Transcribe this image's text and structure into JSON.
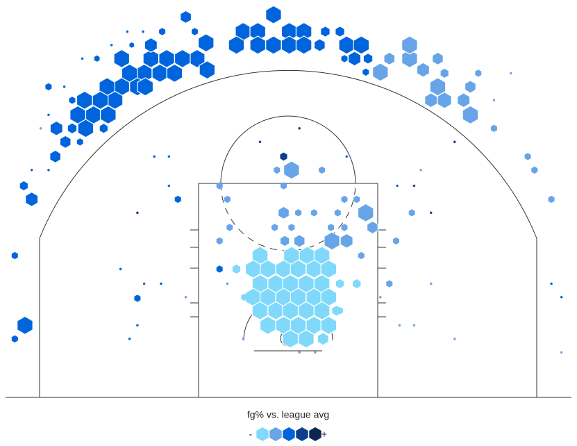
{
  "chart_data": {
    "type": "hexbin",
    "legend_title": "fg% vs. league avg",
    "legend_low": "-",
    "legend_high": "+",
    "colors": [
      "#80d9fb",
      "#68a4e8",
      "#0065dc",
      "#0d3f8c",
      "#0b2650"
    ],
    "hexes": [
      {
        "x": -7.3,
        "y": 31.5,
        "size": 1,
        "level": 3
      },
      {
        "x": -8.1,
        "y": 30.1,
        "size": 1,
        "level": 3
      },
      {
        "x": -7.2,
        "y": 29.1,
        "size": 1,
        "level": 3
      },
      {
        "x": -9.4,
        "y": 30.1,
        "size": 1,
        "level": 3
      },
      {
        "x": -10.8,
        "y": 30.1,
        "size": 1,
        "level": 3
      },
      {
        "x": -12.2,
        "y": 30.1,
        "size": 1,
        "level": 3
      },
      {
        "x": -11.4,
        "y": 28.8,
        "size": 1,
        "level": 3
      },
      {
        "x": -12.8,
        "y": 28.8,
        "size": 1,
        "level": 3
      },
      {
        "x": -14.1,
        "y": 28.8,
        "size": 1,
        "level": 3
      },
      {
        "x": -13.4,
        "y": 27.6,
        "size": 1,
        "level": 3
      },
      {
        "x": -14.8,
        "y": 27.6,
        "size": 1,
        "level": 3
      },
      {
        "x": -16.1,
        "y": 27.6,
        "size": 1,
        "level": 3
      },
      {
        "x": -15.4,
        "y": 26.4,
        "size": 1,
        "level": 3
      },
      {
        "x": -16.7,
        "y": 26.4,
        "size": 1,
        "level": 3
      },
      {
        "x": -18.1,
        "y": 26.4,
        "size": 1,
        "level": 3
      },
      {
        "x": -17.3,
        "y": 25.1,
        "size": 1,
        "level": 3
      },
      {
        "x": -16.0,
        "y": 25.1,
        "size": 1,
        "level": 3
      },
      {
        "x": -18.7,
        "y": 25.1,
        "size": 1,
        "level": 3
      },
      {
        "x": -18.0,
        "y": 23.9,
        "size": 1,
        "level": 3
      },
      {
        "x": -12.7,
        "y": 27.6,
        "size": 1,
        "level": 3
      },
      {
        "x": -10.1,
        "y": 28.8,
        "size": 1,
        "level": 3
      },
      {
        "x": -14.8,
        "y": 30.1,
        "size": 1,
        "level": 3
      },
      {
        "x": -12.2,
        "y": 31.3,
        "size": 0.8,
        "level": 3
      },
      {
        "x": -4.0,
        "y": 32.5,
        "size": 1,
        "level": 3
      },
      {
        "x": -2.7,
        "y": 32.5,
        "size": 1,
        "level": 3
      },
      {
        "x": -1.3,
        "y": 34.0,
        "size": 1,
        "level": 3
      },
      {
        "x": 0.1,
        "y": 32.5,
        "size": 1,
        "level": 3
      },
      {
        "x": 1.4,
        "y": 32.5,
        "size": 1,
        "level": 3
      },
      {
        "x": -2.7,
        "y": 31.3,
        "size": 1,
        "level": 3
      },
      {
        "x": -1.3,
        "y": 31.3,
        "size": 1,
        "level": 3
      },
      {
        "x": 0.1,
        "y": 31.3,
        "size": 1,
        "level": 3
      },
      {
        "x": 1.4,
        "y": 31.3,
        "size": 1,
        "level": 3
      },
      {
        "x": -4.6,
        "y": 31.3,
        "size": 1,
        "level": 3
      },
      {
        "x": 2.8,
        "y": 31.3,
        "size": 0.7,
        "level": 3
      },
      {
        "x": 5.2,
        "y": 31.3,
        "size": 1,
        "level": 3
      },
      {
        "x": 6.5,
        "y": 31.3,
        "size": 1,
        "level": 3
      },
      {
        "x": 5.9,
        "y": 30.1,
        "size": 0.8,
        "level": 3
      },
      {
        "x": -9.1,
        "y": 33.8,
        "size": 0.7,
        "level": 3
      },
      {
        "x": -11.2,
        "y": 32.5,
        "size": 0.4,
        "level": 3
      },
      {
        "x": -8.3,
        "y": 32.5,
        "size": 0.4,
        "level": 3
      },
      {
        "x": 3.3,
        "y": 32.5,
        "size": 0.6,
        "level": 3
      },
      {
        "x": 4.6,
        "y": 32.5,
        "size": 0.6,
        "level": 3
      },
      {
        "x": 7.1,
        "y": 30.1,
        "size": 0.6,
        "level": 3
      },
      {
        "x": 5.0,
        "y": 30.1,
        "size": 0.4,
        "level": 3
      },
      {
        "x": -16.4,
        "y": 23.9,
        "size": 0.5,
        "level": 3
      },
      {
        "x": -20.6,
        "y": 23.9,
        "size": 0.8,
        "level": 3
      },
      {
        "x": -19.2,
        "y": 23.9,
        "size": 0.6,
        "level": 3
      },
      {
        "x": -19.8,
        "y": 22.7,
        "size": 0.7,
        "level": 3
      },
      {
        "x": -20.7,
        "y": 21.4,
        "size": 0.7,
        "level": 3
      },
      {
        "x": -18.5,
        "y": 22.7,
        "size": 0.4,
        "level": 3
      },
      {
        "x": -21.3,
        "y": 27.6,
        "size": 0.4,
        "level": 3
      },
      {
        "x": -22.8,
        "y": 17.6,
        "size": 0.8,
        "level": 3
      },
      {
        "x": -23.5,
        "y": 18.8,
        "size": 0.5,
        "level": 3
      },
      {
        "x": -23.4,
        "y": 6.4,
        "size": 1,
        "level": 3
      },
      {
        "x": -24.3,
        "y": 5.2,
        "size": 0.4,
        "level": 3
      },
      {
        "x": -24.3,
        "y": 12.6,
        "size": 0.4,
        "level": 3
      },
      {
        "x": -9.8,
        "y": 17.6,
        "size": 0.4,
        "level": 3
      },
      {
        "x": -13.4,
        "y": 8.8,
        "size": 0.4,
        "level": 3
      },
      {
        "x": -6.1,
        "y": 11.4,
        "size": 0.4,
        "level": 3
      },
      {
        "x": 6.9,
        "y": 28.9,
        "size": 0.4,
        "level": 3
      },
      {
        "x": -17.0,
        "y": 30.1,
        "size": 0.35,
        "level": 3
      },
      {
        "x": -19.2,
        "y": 26.4,
        "size": 0.4,
        "level": 3
      },
      {
        "x": -13.9,
        "y": 31.3,
        "size": 0.3,
        "level": 3
      },
      {
        "x": 10.8,
        "y": 30.1,
        "size": 1,
        "level": 2
      },
      {
        "x": 10.8,
        "y": 31.3,
        "size": 1,
        "level": 2
      },
      {
        "x": 12.0,
        "y": 29.1,
        "size": 0.8,
        "level": 2
      },
      {
        "x": 13.3,
        "y": 30.1,
        "size": 0.7,
        "level": 2
      },
      {
        "x": 13.3,
        "y": 27.6,
        "size": 1,
        "level": 2
      },
      {
        "x": 13.9,
        "y": 26.4,
        "size": 0.9,
        "level": 2
      },
      {
        "x": 12.7,
        "y": 26.4,
        "size": 0.8,
        "level": 2
      },
      {
        "x": 15.6,
        "y": 26.4,
        "size": 0.8,
        "level": 2
      },
      {
        "x": 16.2,
        "y": 27.6,
        "size": 0.7,
        "level": 2
      },
      {
        "x": 16.2,
        "y": 25.1,
        "size": 1,
        "level": 2
      },
      {
        "x": 8.2,
        "y": 28.9,
        "size": 1,
        "level": 2
      },
      {
        "x": 9.0,
        "y": 30.1,
        "size": 0.7,
        "level": 2
      },
      {
        "x": 13.9,
        "y": 28.8,
        "size": 0.5,
        "level": 2
      },
      {
        "x": 16.9,
        "y": 28.8,
        "size": 0.4,
        "level": 2
      },
      {
        "x": 18.3,
        "y": 23.9,
        "size": 0.4,
        "level": 2
      },
      {
        "x": 21.3,
        "y": 21.4,
        "size": 0.4,
        "level": 2
      },
      {
        "x": 21.9,
        "y": 20.2,
        "size": 0.4,
        "level": 2
      },
      {
        "x": 23.4,
        "y": 17.6,
        "size": 0.4,
        "level": 2
      },
      {
        "x": 0.3,
        "y": 20.2,
        "size": 1,
        "level": 2
      },
      {
        "x": -1.0,
        "y": 20.2,
        "size": 0.4,
        "level": 2
      },
      {
        "x": -0.4,
        "y": 18.8,
        "size": 0.4,
        "level": 2
      },
      {
        "x": 3.0,
        "y": 20.2,
        "size": 0.4,
        "level": 2
      },
      {
        "x": -6.1,
        "y": 18.8,
        "size": 0.4,
        "level": 2
      },
      {
        "x": -5.4,
        "y": 17.6,
        "size": 0.4,
        "level": 2
      },
      {
        "x": -0.4,
        "y": 16.4,
        "size": 0.7,
        "level": 2
      },
      {
        "x": 0.9,
        "y": 16.4,
        "size": 0.4,
        "level": 2
      },
      {
        "x": 2.3,
        "y": 16.4,
        "size": 0.4,
        "level": 2
      },
      {
        "x": 4.4,
        "y": 16.4,
        "size": 0.4,
        "level": 2
      },
      {
        "x": 6.9,
        "y": 16.4,
        "size": 1,
        "level": 2
      },
      {
        "x": 6.1,
        "y": 17.6,
        "size": 0.4,
        "level": 2
      },
      {
        "x": 5.0,
        "y": 17.6,
        "size": 0.4,
        "level": 2
      },
      {
        "x": 7.5,
        "y": 15.1,
        "size": 0.7,
        "level": 2
      },
      {
        "x": 5.0,
        "y": 15.1,
        "size": 0.4,
        "level": 2
      },
      {
        "x": 3.8,
        "y": 15.1,
        "size": 0.4,
        "level": 2
      },
      {
        "x": 0.3,
        "y": 15.1,
        "size": 0.4,
        "level": 2
      },
      {
        "x": -1.2,
        "y": 15.1,
        "size": 0.4,
        "level": 2
      },
      {
        "x": -5.2,
        "y": 15.1,
        "size": 0.4,
        "level": 2
      },
      {
        "x": -6.1,
        "y": 13.9,
        "size": 0.4,
        "level": 2
      },
      {
        "x": -0.3,
        "y": 13.9,
        "size": 0.6,
        "level": 2
      },
      {
        "x": 1.0,
        "y": 13.9,
        "size": 0.7,
        "level": 2
      },
      {
        "x": 3.9,
        "y": 13.9,
        "size": 1,
        "level": 2
      },
      {
        "x": 5.2,
        "y": 13.9,
        "size": 0.8,
        "level": 2
      },
      {
        "x": 9.6,
        "y": 13.9,
        "size": 0.4,
        "level": 2
      },
      {
        "x": 11.0,
        "y": 16.4,
        "size": 0.4,
        "level": 2
      },
      {
        "x": 9.0,
        "y": 10.1,
        "size": 0.4,
        "level": 2
      },
      {
        "x": -3.3,
        "y": 11.4,
        "size": 0.4,
        "level": 2
      },
      {
        "x": 6.5,
        "y": 12.6,
        "size": 0.4,
        "level": 2
      },
      {
        "x": -2.5,
        "y": 12.6,
        "size": 1,
        "level": 1
      },
      {
        "x": 0.3,
        "y": 12.6,
        "size": 1,
        "level": 1
      },
      {
        "x": 1.7,
        "y": 12.6,
        "size": 1,
        "level": 1
      },
      {
        "x": 3.0,
        "y": 12.6,
        "size": 1,
        "level": 1
      },
      {
        "x": -3.1,
        "y": 11.4,
        "size": 1,
        "level": 1
      },
      {
        "x": -1.8,
        "y": 11.4,
        "size": 1,
        "level": 1
      },
      {
        "x": -0.4,
        "y": 11.4,
        "size": 1,
        "level": 1
      },
      {
        "x": 0.9,
        "y": 11.4,
        "size": 1,
        "level": 1
      },
      {
        "x": 2.3,
        "y": 11.4,
        "size": 1,
        "level": 1
      },
      {
        "x": 3.6,
        "y": 11.4,
        "size": 1,
        "level": 1
      },
      {
        "x": -2.5,
        "y": 10.1,
        "size": 1,
        "level": 1
      },
      {
        "x": -1.1,
        "y": 10.1,
        "size": 1,
        "level": 1
      },
      {
        "x": 0.2,
        "y": 10.1,
        "size": 1,
        "level": 1
      },
      {
        "x": 1.6,
        "y": 10.1,
        "size": 1,
        "level": 1
      },
      {
        "x": 3.0,
        "y": 10.1,
        "size": 1,
        "level": 1
      },
      {
        "x": -3.1,
        "y": 8.9,
        "size": 1,
        "level": 1
      },
      {
        "x": -1.8,
        "y": 8.9,
        "size": 1,
        "level": 1
      },
      {
        "x": -0.4,
        "y": 8.9,
        "size": 1,
        "level": 1
      },
      {
        "x": 0.9,
        "y": 8.9,
        "size": 1,
        "level": 1
      },
      {
        "x": 2.3,
        "y": 8.9,
        "size": 1,
        "level": 1
      },
      {
        "x": 3.6,
        "y": 8.9,
        "size": 1,
        "level": 1
      },
      {
        "x": -2.5,
        "y": 7.7,
        "size": 1,
        "level": 1
      },
      {
        "x": -1.1,
        "y": 7.7,
        "size": 1,
        "level": 1
      },
      {
        "x": 0.2,
        "y": 7.7,
        "size": 1,
        "level": 1
      },
      {
        "x": 1.6,
        "y": 7.7,
        "size": 1,
        "level": 1
      },
      {
        "x": 3.0,
        "y": 7.7,
        "size": 1,
        "level": 1
      },
      {
        "x": 4.3,
        "y": 7.7,
        "size": 0.6,
        "level": 1
      },
      {
        "x": -1.8,
        "y": 6.4,
        "size": 1,
        "level": 1
      },
      {
        "x": -0.4,
        "y": 6.4,
        "size": 1,
        "level": 1
      },
      {
        "x": 0.9,
        "y": 6.4,
        "size": 1,
        "level": 1
      },
      {
        "x": 2.3,
        "y": 6.4,
        "size": 1,
        "level": 1
      },
      {
        "x": 3.6,
        "y": 6.4,
        "size": 1,
        "level": 1
      },
      {
        "x": 0.2,
        "y": 5.2,
        "size": 1,
        "level": 1
      },
      {
        "x": 1.6,
        "y": 5.2,
        "size": 1,
        "level": 1
      },
      {
        "x": 3.1,
        "y": 5.2,
        "size": 0.7,
        "level": 1
      },
      {
        "x": -4.6,
        "y": 11.4,
        "size": 0.5,
        "level": 1
      },
      {
        "x": 6.1,
        "y": 10.1,
        "size": 0.5,
        "level": 1
      },
      {
        "x": 4.6,
        "y": 10.1,
        "size": 0.5,
        "level": 1
      },
      {
        "x": -3.9,
        "y": 8.9,
        "size": 0.4,
        "level": 1
      },
      {
        "x": 4.6,
        "y": 7.7,
        "size": 0.4,
        "level": 1
      },
      {
        "x": -0.4,
        "y": 21.4,
        "size": 0.45,
        "level": 4
      },
      {
        "x": -14.3,
        "y": 32.5,
        "size": 0.15,
        "level": 3
      },
      {
        "x": -12.9,
        "y": 32.5,
        "size": 0.15,
        "level": 3
      },
      {
        "x": -15.7,
        "y": 31.3,
        "size": 0.15,
        "level": 3
      },
      {
        "x": -18.3,
        "y": 30.1,
        "size": 0.15,
        "level": 3
      },
      {
        "x": -19.9,
        "y": 27.6,
        "size": 0.15,
        "level": 3
      },
      {
        "x": -21.3,
        "y": 25.1,
        "size": 0.15,
        "level": 3
      },
      {
        "x": -22.0,
        "y": 23.9,
        "size": 0.15,
        "level": 2
      },
      {
        "x": -21.3,
        "y": 20.2,
        "size": 0.15,
        "level": 3
      },
      {
        "x": -22.8,
        "y": 20.2,
        "size": 0.15,
        "level": 3
      },
      {
        "x": -11.9,
        "y": 21.4,
        "size": 0.15,
        "level": 3
      },
      {
        "x": -10.6,
        "y": 21.4,
        "size": 0.15,
        "level": 3
      },
      {
        "x": -13.4,
        "y": 16.4,
        "size": 0.15,
        "level": 4
      },
      {
        "x": -14.9,
        "y": 11.4,
        "size": 0.15,
        "level": 3
      },
      {
        "x": -14.1,
        "y": 5.2,
        "size": 0.15,
        "level": 3
      },
      {
        "x": -13.4,
        "y": 6.4,
        "size": 0.15,
        "level": 3
      },
      {
        "x": -12.8,
        "y": 10.1,
        "size": 0.15,
        "level": 3
      },
      {
        "x": -11.3,
        "y": 10.1,
        "size": 0.15,
        "level": 3
      },
      {
        "x": -9.1,
        "y": 8.9,
        "size": 0.15,
        "level": 2
      },
      {
        "x": 11.2,
        "y": 6.4,
        "size": 0.15,
        "level": 2
      },
      {
        "x": 9.9,
        "y": 6.4,
        "size": 0.15,
        "level": 2
      },
      {
        "x": 12.7,
        "y": 10.1,
        "size": 0.15,
        "level": 2
      },
      {
        "x": 14.8,
        "y": 5.2,
        "size": 0.15,
        "level": 2
      },
      {
        "x": 24.3,
        "y": 4.0,
        "size": 0.15,
        "level": 2
      },
      {
        "x": 23.4,
        "y": 10.1,
        "size": 0.15,
        "level": 3
      },
      {
        "x": 24.3,
        "y": 8.9,
        "size": 0.15,
        "level": 3
      },
      {
        "x": 19.8,
        "y": 28.8,
        "size": 0.15,
        "level": 2
      },
      {
        "x": 18.3,
        "y": 26.4,
        "size": 0.15,
        "level": 2
      },
      {
        "x": 14.8,
        "y": 22.7,
        "size": 0.15,
        "level": 4
      },
      {
        "x": 12.7,
        "y": 16.4,
        "size": 0.15,
        "level": 4
      },
      {
        "x": 1.0,
        "y": 23.9,
        "size": 0.15,
        "level": 4
      },
      {
        "x": -2.5,
        "y": 22.7,
        "size": 0.15,
        "level": 4
      },
      {
        "x": 11.2,
        "y": 18.8,
        "size": 0.15,
        "level": 4
      },
      {
        "x": 9.7,
        "y": 18.8,
        "size": 0.15,
        "level": 3
      },
      {
        "x": 5.2,
        "y": 21.4,
        "size": 0.15,
        "level": 3
      },
      {
        "x": 11.8,
        "y": 20.2,
        "size": 0.15,
        "level": 2
      },
      {
        "x": -10.6,
        "y": 18.8,
        "size": 0.15,
        "level": 3
      },
      {
        "x": -4.0,
        "y": 5.2,
        "size": 0.15,
        "level": 2
      },
      {
        "x": 1.0,
        "y": 4.0,
        "size": 0.15,
        "level": 2
      },
      {
        "x": 2.4,
        "y": 4.0,
        "size": 0.15,
        "level": 2
      },
      {
        "x": -5.4,
        "y": 10.1,
        "size": 0.15,
        "level": 2
      },
      {
        "x": 8.2,
        "y": 8.9,
        "size": 0.15,
        "level": 2
      }
    ]
  }
}
